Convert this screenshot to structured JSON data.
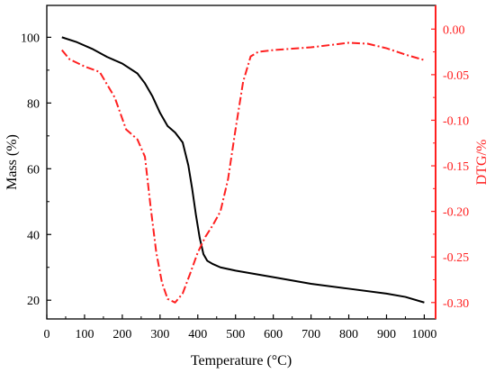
{
  "chart_data": {
    "type": "line",
    "xlabel": "Temperature (°C)",
    "y1label": "Mass (%)",
    "y2label": "DTG/%",
    "xlim": [
      0,
      1030
    ],
    "y1lim": [
      14.3,
      109.7
    ],
    "y2lim": [
      -0.318,
      0.026
    ],
    "x_ticks": [
      0,
      100,
      200,
      300,
      400,
      500,
      600,
      700,
      800,
      900,
      1000
    ],
    "y1_ticks": [
      20,
      40,
      60,
      80,
      100
    ],
    "y2_ticks": [
      0.0,
      -0.05,
      -0.1,
      -0.15,
      -0.2,
      -0.25,
      -0.3
    ],
    "x_tick_labels": [
      "0",
      "100",
      "200",
      "300",
      "400",
      "500",
      "600",
      "700",
      "800",
      "900",
      "1000"
    ],
    "y1_tick_labels": [
      "20",
      "40",
      "60",
      "80",
      "100"
    ],
    "y2_tick_labels": [
      "0.00",
      "-0.05",
      "-0.10",
      "-0.15",
      "-0.20",
      "-0.25",
      "-0.30"
    ],
    "colors": {
      "mass": "#000000",
      "dtg": "#ff2020",
      "axis_left": "#000000",
      "axis_right": "#ff2020"
    },
    "series": [
      {
        "axis": "left",
        "style": "solid",
        "x": [
          40,
          80,
          120,
          160,
          200,
          240,
          260,
          280,
          300,
          320,
          340,
          360,
          375,
          385,
          395,
          405,
          415,
          425,
          440,
          460,
          500,
          600,
          700,
          800,
          900,
          950,
          1000
        ],
        "y": [
          100,
          98.5,
          96.5,
          94,
          92,
          89,
          86,
          82,
          77,
          73,
          71,
          68,
          61,
          54,
          46,
          39,
          34,
          32,
          31,
          30,
          29,
          27,
          25,
          23.5,
          22,
          21,
          19.3
        ]
      },
      {
        "axis": "right",
        "style": "dash-dot",
        "x": [
          40,
          60,
          100,
          140,
          180,
          210,
          240,
          260,
          275,
          290,
          305,
          320,
          340,
          360,
          380,
          400,
          420,
          440,
          460,
          480,
          500,
          520,
          540,
          560,
          600,
          700,
          800,
          850,
          900,
          950,
          1000
        ],
        "y": [
          -0.023,
          -0.033,
          -0.041,
          -0.047,
          -0.075,
          -0.11,
          -0.121,
          -0.14,
          -0.195,
          -0.245,
          -0.278,
          -0.296,
          -0.3,
          -0.29,
          -0.268,
          -0.245,
          -0.228,
          -0.215,
          -0.2,
          -0.165,
          -0.11,
          -0.058,
          -0.03,
          -0.025,
          -0.023,
          -0.02,
          -0.015,
          -0.016,
          -0.021,
          -0.028,
          -0.034
        ]
      }
    ]
  }
}
